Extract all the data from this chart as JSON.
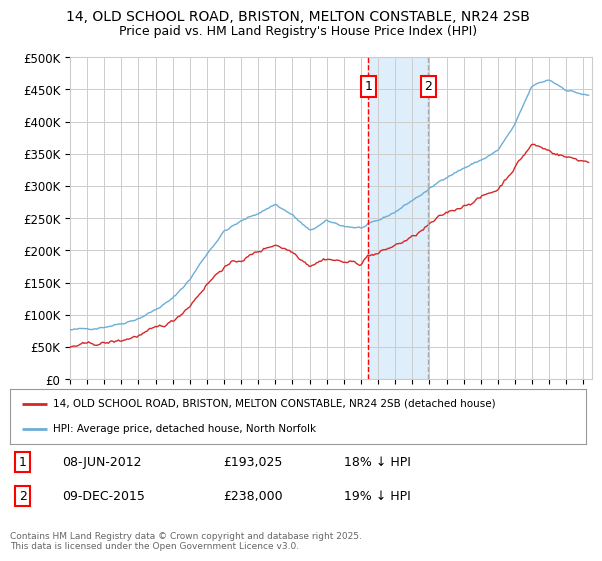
{
  "title_line1": "14, OLD SCHOOL ROAD, BRISTON, MELTON CONSTABLE, NR24 2SB",
  "title_line2": "Price paid vs. HM Land Registry's House Price Index (HPI)",
  "ylabel_ticks": [
    "£0",
    "£50K",
    "£100K",
    "£150K",
    "£200K",
    "£250K",
    "£300K",
    "£350K",
    "£400K",
    "£450K",
    "£500K"
  ],
  "ytick_values": [
    0,
    50000,
    100000,
    150000,
    200000,
    250000,
    300000,
    350000,
    400000,
    450000,
    500000
  ],
  "xlim_start": 1995.0,
  "xlim_end": 2025.5,
  "ylim_min": 0,
  "ylim_max": 500000,
  "marker1_date": 2012.44,
  "marker2_date": 2015.94,
  "marker1_text": "08-JUN-2012",
  "marker1_price": "£193,025",
  "marker1_hpi": "18% ↓ HPI",
  "marker2_text": "09-DEC-2015",
  "marker2_price": "£238,000",
  "marker2_hpi": "19% ↓ HPI",
  "legend_line1": "14, OLD SCHOOL ROAD, BRISTON, MELTON CONSTABLE, NR24 2SB (detached house)",
  "legend_line2": "HPI: Average price, detached house, North Norfolk",
  "footer": "Contains HM Land Registry data © Crown copyright and database right 2025.\nThis data is licensed under the Open Government Licence v3.0.",
  "hpi_color": "#6baed6",
  "price_color": "#d62728",
  "background_color": "#ffffff",
  "grid_color": "#cccccc",
  "shade_color": "#d0e8f8"
}
